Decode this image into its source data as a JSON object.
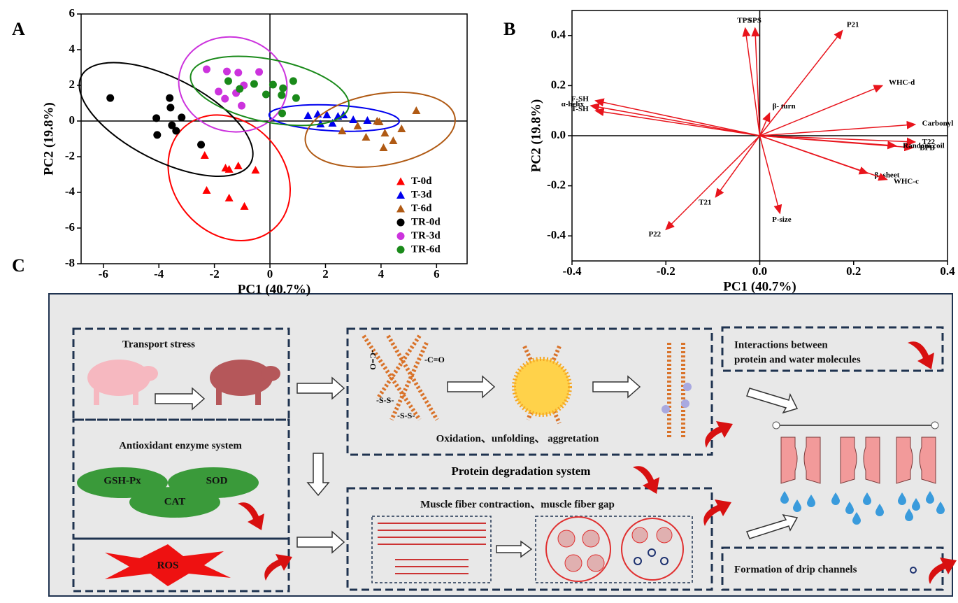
{
  "chart_data": [
    {
      "type": "scatter",
      "panel_label": "A",
      "xlabel": "PC1 (40.7%)",
      "ylabel": "PC2 (19.8%)",
      "xlim": [
        -6.8,
        7.1
      ],
      "ylim": [
        -8,
        6
      ],
      "xticks": [
        -6,
        -4,
        -2,
        0,
        2,
        4,
        6
      ],
      "yticks": [
        -8,
        -6,
        -4,
        -2,
        0,
        2,
        4,
        6
      ],
      "legend": "lower right",
      "series": [
        {
          "name": "T-0d",
          "color": "#ff0000",
          "marker": "triangle",
          "x": [
            -2.35,
            -1.6,
            -1.47,
            -1.14,
            -0.52,
            -2.28,
            -1.47,
            -0.92
          ],
          "values": [
            -1.92,
            -2.63,
            -2.7,
            -2.51,
            -2.75,
            -3.88,
            -4.31,
            -4.78
          ]
        },
        {
          "name": "T-3d",
          "color": "#0000ee",
          "marker": "triangle",
          "x": [
            1.37,
            1.72,
            2.05,
            2.45,
            2.65,
            1.82,
            2.25,
            3.0,
            3.51
          ],
          "values": [
            0.31,
            0.39,
            0.35,
            0.27,
            0.35,
            -0.16,
            -0.12,
            0.08,
            0.04
          ]
        },
        {
          "name": "T-6d",
          "color": "#b05a14",
          "marker": "triangle",
          "x": [
            2.6,
            3.16,
            3.86,
            4.14,
            4.74,
            5.27,
            3.46,
            4.44,
            4.09,
            3.94
          ],
          "values": [
            -0.55,
            -0.27,
            0,
            -0.67,
            -0.43,
            0.59,
            -0.9,
            -1.1,
            -1.49,
            -0.04
          ]
        },
        {
          "name": "TR-0d",
          "color": "#000000",
          "marker": "circle",
          "x": [
            -5.75,
            -3.61,
            -4.09,
            -3.58,
            -3.18,
            -3.38,
            -4.06,
            -3.53,
            -2.48
          ],
          "values": [
            1.29,
            1.29,
            0.16,
            0.75,
            0.2,
            -0.55,
            -0.78,
            -0.24,
            -1.33
          ]
        },
        {
          "name": "TR-3d",
          "color": "#cc33dd",
          "marker": "circle",
          "x": [
            -2.28,
            -1.55,
            -1.14,
            -0.39,
            -0.94,
            -1.85,
            -1.22,
            -1.62,
            -1.02
          ],
          "values": [
            2.9,
            2.78,
            2.71,
            2.75,
            2.0,
            1.65,
            1.57,
            1.25,
            0.86
          ]
        },
        {
          "name": "TR-6d",
          "color": "#1a8a1a",
          "marker": "circle",
          "x": [
            -1.5,
            -1.09,
            -0.57,
            0.11,
            0.47,
            0.84,
            0.94,
            0.42,
            -0.14,
            0.44
          ],
          "values": [
            2.24,
            1.8,
            2.08,
            2.04,
            1.84,
            2.24,
            1.29,
            1.45,
            1.49,
            0.43
          ]
        }
      ]
    },
    {
      "type": "biplot",
      "panel_label": "B",
      "xlabel": "PC1 (40.7%)",
      "ylabel": "PC2 (19.8%)",
      "xlim": [
        -0.4,
        0.4
      ],
      "ylim": [
        -0.5,
        0.5
      ],
      "xticks": [
        -0.4,
        -0.2,
        {
          "value": 0,
          "label": "0.0"
        },
        0.2,
        0.4
      ],
      "yticks": [
        -0.4,
        -0.2,
        {
          "value": 0,
          "label": "0.0"
        },
        0.2,
        0.4
      ],
      "color": "#e8141c",
      "categories": [
        "TPS",
        "SPS",
        "P21",
        "F-SH",
        "α-helix",
        "T-SH",
        "β- turn",
        "WHC-d",
        "Carbonyl",
        "T22",
        "BPB",
        "Random coil",
        "β- sheet",
        "WHC-c",
        "T21",
        "P-size",
        "P22"
      ],
      "x": [
        -0.031,
        -0.01,
        0.176,
        -0.35,
        -0.36,
        -0.35,
        0.021,
        0.261,
        0.331,
        0.331,
        0.326,
        0.29,
        0.23,
        0.271,
        -0.094,
        0.043,
        -0.2
      ],
      "values": [
        0.43,
        0.43,
        0.42,
        0.14,
        0.12,
        0.1,
        0.09,
        0.2,
        0.045,
        -0.025,
        -0.048,
        -0.04,
        -0.15,
        -0.175,
        -0.245,
        -0.31,
        -0.375
      ]
    }
  ],
  "diagram": {
    "label": "C",
    "transport_stress": "Transport stress",
    "antioxidant": "Antioxidant enzyme system",
    "enzymes": [
      "GSH-Px",
      "SOD",
      "CAT"
    ],
    "ros": "ROS",
    "groups": [
      "-C=O",
      "-C=O",
      "-S-S-",
      "-S-S-"
    ],
    "oxidation": "Oxidation、unfolding、 aggretation",
    "degradation": "Protein degradation system",
    "muscle": "Muscle fiber contraction、muscle fiber gap",
    "interactions": [
      "Interactions between",
      "protein and water molecules"
    ],
    "drip": "Formation of drip channels"
  }
}
